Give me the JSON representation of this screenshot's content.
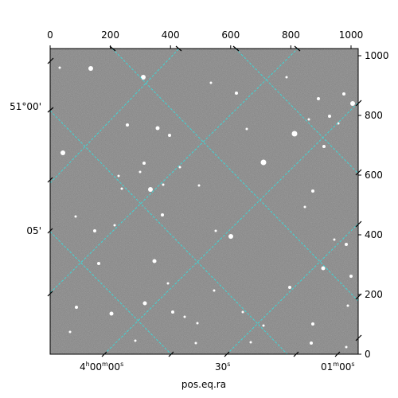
{
  "chart_data": {
    "type": "image",
    "xlabel": "pos.eq.ra",
    "ylabel": "",
    "pixel_axes": {
      "top_ticks": [
        0,
        200,
        400,
        600,
        800,
        1000
      ],
      "right_ticks": [
        0,
        200,
        400,
        600,
        800,
        1000
      ],
      "xlim": [
        0,
        1024
      ],
      "ylim": [
        0,
        1024
      ]
    },
    "world_axes": {
      "ra_ticks": [
        "4ʰ00ᵐ00ˢ",
        "30ˢ",
        "01ᵐ00ˢ"
      ],
      "dec_ticks": [
        "51°00'",
        "05'"
      ]
    },
    "grid": true,
    "grid_color": "#3fd6d6",
    "image_colormap": "gray",
    "image_background": "#7a7a7a"
  },
  "labels": {
    "top": [
      "0",
      "200",
      "400",
      "600",
      "800",
      "1000"
    ],
    "right": [
      "0",
      "200",
      "400",
      "600",
      "800",
      "1000"
    ],
    "ra": [
      "4",
      "h",
      "00",
      "m",
      "00",
      "s",
      "30",
      "s",
      "01",
      "m",
      "00",
      "s"
    ],
    "dec": [
      "51°00'",
      "05'"
    ],
    "xlabel": "pos.eq.ra"
  }
}
